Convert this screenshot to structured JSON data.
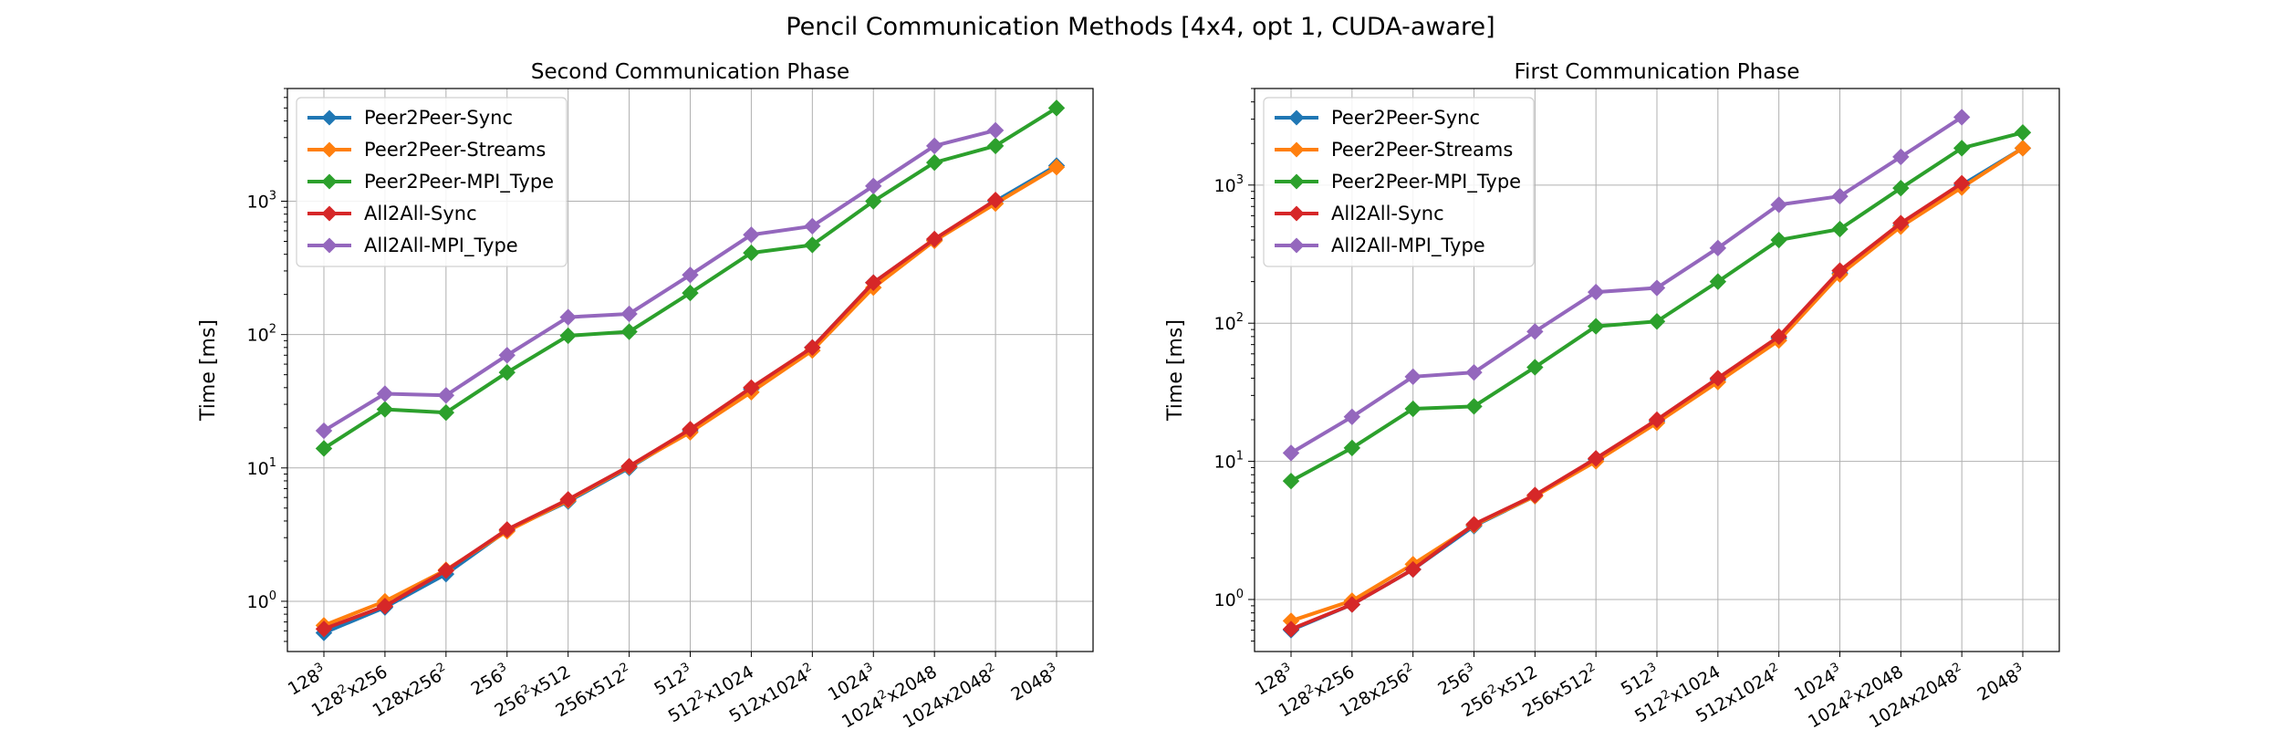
{
  "suptitle": "Pencil Communication Methods [4x4, opt 1, CUDA-aware]",
  "colors": {
    "Peer2Peer-Sync": "#1f77b4",
    "Peer2Peer-Streams": "#ff7f0e",
    "Peer2Peer-MPI_Type": "#2ca02c",
    "All2All-Sync": "#d62728",
    "All2All-MPI_Type": "#9467bd"
  },
  "chart_data": [
    {
      "type": "line",
      "title": "Second Communication Phase",
      "xlabel": "",
      "ylabel": "Time [ms]",
      "yscale": "log",
      "ylim": [
        0.42,
        7000
      ],
      "grid": true,
      "legend": "top-left",
      "categories": [
        [
          "128",
          "3",
          ""
        ],
        [
          "128",
          "2",
          "x256"
        ],
        [
          "128x256",
          "2",
          ""
        ],
        [
          "256",
          "3",
          ""
        ],
        [
          "256",
          "2",
          "x512"
        ],
        [
          "256x512",
          "2",
          ""
        ],
        [
          "512",
          "3",
          ""
        ],
        [
          "512",
          "2",
          "x1024"
        ],
        [
          "512x1024",
          "2",
          ""
        ],
        [
          "1024",
          "3",
          ""
        ],
        [
          "1024",
          "2",
          "x2048"
        ],
        [
          "1024x2048",
          "2",
          ""
        ],
        [
          "2048",
          "3",
          ""
        ]
      ],
      "series": [
        {
          "name": "Peer2Peer-Sync",
          "values": [
            0.58,
            0.9,
            1.6,
            3.4,
            5.6,
            10.0,
            19.0,
            39.0,
            80.0,
            245,
            510,
            1000,
            1850
          ]
        },
        {
          "name": "Peer2Peer-Streams",
          "values": [
            0.66,
            1.0,
            1.72,
            3.35,
            5.7,
            10.2,
            18.5,
            37.0,
            76.0,
            225,
            505,
            960,
            1800
          ]
        },
        {
          "name": "Peer2Peer-MPI_Type",
          "values": [
            14.0,
            27.5,
            26.0,
            52,
            98,
            105,
            205,
            410,
            470,
            1000,
            1950,
            2600,
            5000
          ]
        },
        {
          "name": "All2All-Sync",
          "values": [
            0.62,
            0.92,
            1.7,
            3.45,
            5.8,
            10.3,
            19.5,
            40.0,
            80.0,
            245,
            520,
            1020,
            null
          ]
        },
        {
          "name": "All2All-MPI_Type",
          "values": [
            19.0,
            36.0,
            35.0,
            70,
            135,
            143,
            280,
            560,
            650,
            1300,
            2600,
            3400,
            null
          ]
        }
      ]
    },
    {
      "type": "line",
      "title": "First Communication Phase",
      "xlabel": "",
      "ylabel": "Time [ms]",
      "yscale": "log",
      "ylim": [
        0.42,
        5000
      ],
      "grid": true,
      "legend": "top-left",
      "categories": [
        [
          "128",
          "3",
          ""
        ],
        [
          "128",
          "2",
          "x256"
        ],
        [
          "128x256",
          "2",
          ""
        ],
        [
          "256",
          "3",
          ""
        ],
        [
          "256",
          "2",
          "x512"
        ],
        [
          "256x512",
          "2",
          ""
        ],
        [
          "512",
          "3",
          ""
        ],
        [
          "512",
          "2",
          "x1024"
        ],
        [
          "512x1024",
          "2",
          ""
        ],
        [
          "1024",
          "3",
          ""
        ],
        [
          "1024",
          "2",
          "x2048"
        ],
        [
          "1024x2048",
          "2",
          ""
        ],
        [
          "2048",
          "3",
          ""
        ]
      ],
      "series": [
        {
          "name": "Peer2Peer-Sync",
          "values": [
            0.6,
            0.92,
            1.65,
            3.4,
            5.6,
            10.3,
            19.5,
            39.0,
            78.0,
            230,
            510,
            1000,
            1850
          ]
        },
        {
          "name": "Peer2Peer-Streams",
          "values": [
            0.7,
            0.98,
            1.8,
            3.45,
            5.6,
            10.0,
            19.0,
            37.5,
            75.0,
            225,
            500,
            960,
            1850
          ]
        },
        {
          "name": "Peer2Peer-MPI_Type",
          "values": [
            7.2,
            12.5,
            24.0,
            25.0,
            48,
            95,
            103,
            200,
            400,
            480,
            950,
            1850,
            2400
          ]
        },
        {
          "name": "All2All-Sync",
          "values": [
            0.61,
            0.92,
            1.65,
            3.5,
            5.7,
            10.5,
            20.0,
            40.0,
            80.0,
            240,
            530,
            1030,
            null
          ]
        },
        {
          "name": "All2All-MPI_Type",
          "values": [
            11.5,
            21.0,
            41.0,
            44.0,
            87,
            168,
            180,
            350,
            720,
            830,
            1600,
            3100,
            null
          ]
        }
      ]
    }
  ]
}
